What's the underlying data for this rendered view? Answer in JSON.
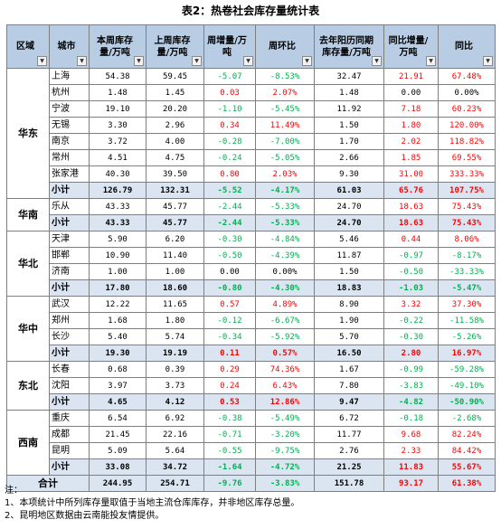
{
  "title": "表2：热卷社会库存量统计表",
  "headers": [
    "区域",
    "城市",
    "本周库存量/万吨",
    "上周库存量/万吨",
    "周增量/万吨",
    "周环比",
    "去年阳历同期库存量/万吨",
    "同比增量/万吨",
    "同比"
  ],
  "groups": [
    {
      "region": "华东",
      "rows": [
        [
          "上海",
          "54.38",
          "59.45",
          "-5.07",
          "-8.53%",
          "32.47",
          "21.91",
          "67.48%"
        ],
        [
          "杭州",
          "1.48",
          "1.45",
          "0.03",
          "2.07%",
          "1.48",
          "0.00",
          "0.00%"
        ],
        [
          "宁波",
          "19.10",
          "20.20",
          "-1.10",
          "-5.45%",
          "11.92",
          "7.18",
          "60.23%"
        ],
        [
          "无锡",
          "3.30",
          "2.96",
          "0.34",
          "11.49%",
          "1.50",
          "1.80",
          "120.00%"
        ],
        [
          "南京",
          "3.72",
          "4.00",
          "-0.28",
          "-7.00%",
          "1.70",
          "2.02",
          "118.82%"
        ],
        [
          "常州",
          "4.51",
          "4.75",
          "-0.24",
          "-5.05%",
          "2.66",
          "1.85",
          "69.55%"
        ],
        [
          "张家港",
          "40.30",
          "39.50",
          "0.80",
          "2.03%",
          "9.30",
          "31.00",
          "333.33%"
        ]
      ],
      "subtotal": [
        "小计",
        "126.79",
        "132.31",
        "-5.52",
        "-4.17%",
        "61.03",
        "65.76",
        "107.75%"
      ]
    },
    {
      "region": "华南",
      "rows": [
        [
          "乐从",
          "43.33",
          "45.77",
          "-2.44",
          "-5.33%",
          "24.70",
          "18.63",
          "75.43%"
        ]
      ],
      "subtotal": [
        "小计",
        "43.33",
        "45.77",
        "-2.44",
        "-5.33%",
        "24.70",
        "18.63",
        "75.43%"
      ]
    },
    {
      "region": "华北",
      "rows": [
        [
          "天津",
          "5.90",
          "6.20",
          "-0.30",
          "-4.84%",
          "5.46",
          "0.44",
          "8.06%"
        ],
        [
          "邯郸",
          "10.90",
          "11.40",
          "-0.50",
          "-4.39%",
          "11.87",
          "-0.97",
          "-8.17%"
        ],
        [
          "济南",
          "1.00",
          "1.00",
          "0.00",
          "0.00%",
          "1.50",
          "-0.50",
          "-33.33%"
        ]
      ],
      "subtotal": [
        "小计",
        "17.80",
        "18.60",
        "-0.80",
        "-4.30%",
        "18.83",
        "-1.03",
        "-5.47%"
      ]
    },
    {
      "region": "华中",
      "rows": [
        [
          "武汉",
          "12.22",
          "11.65",
          "0.57",
          "4.89%",
          "8.90",
          "3.32",
          "37.30%"
        ],
        [
          "郑州",
          "1.68",
          "1.80",
          "-0.12",
          "-6.67%",
          "1.90",
          "-0.22",
          "-11.58%"
        ],
        [
          "长沙",
          "5.40",
          "5.74",
          "-0.34",
          "-5.92%",
          "5.70",
          "-0.30",
          "-5.26%"
        ]
      ],
      "subtotal": [
        "小计",
        "19.30",
        "19.19",
        "0.11",
        "0.57%",
        "16.50",
        "2.80",
        "16.97%"
      ]
    },
    {
      "region": "东北",
      "rows": [
        [
          "长春",
          "0.68",
          "0.39",
          "0.29",
          "74.36%",
          "1.67",
          "-0.99",
          "-59.28%"
        ],
        [
          "沈阳",
          "3.97",
          "3.73",
          "0.24",
          "6.43%",
          "7.80",
          "-3.83",
          "-49.10%"
        ]
      ],
      "subtotal": [
        "小计",
        "4.65",
        "4.12",
        "0.53",
        "12.86%",
        "9.47",
        "-4.82",
        "-50.90%"
      ]
    },
    {
      "region": "西南",
      "rows": [
        [
          "重庆",
          "6.54",
          "6.92",
          "-0.38",
          "-5.49%",
          "6.72",
          "-0.18",
          "-2.68%"
        ],
        [
          "成都",
          "21.45",
          "22.16",
          "-0.71",
          "-3.20%",
          "11.77",
          "9.68",
          "82.24%"
        ],
        [
          "昆明",
          "5.09",
          "5.64",
          "-0.55",
          "-9.75%",
          "2.76",
          "2.33",
          "84.42%"
        ]
      ],
      "subtotal": [
        "小计",
        "33.08",
        "34.72",
        "-1.64",
        "-4.72%",
        "21.25",
        "11.83",
        "55.67%"
      ]
    }
  ],
  "total": [
    "合计",
    "244.95",
    "254.71",
    "-9.76",
    "-3.83%",
    "151.78",
    "93.17",
    "61.38%"
  ],
  "notes": [
    "注：",
    "1、本项统计中所列库存量取值于当地主流仓库库存，并非地区库存总量。",
    "2、昆明地区数据由云南能投友情提供。"
  ],
  "colors": {
    "header_bg": "#b8cce4",
    "subtotal_bg": "#dbe5f1",
    "negative": "#00b050",
    "positive": "#ff0000"
  }
}
